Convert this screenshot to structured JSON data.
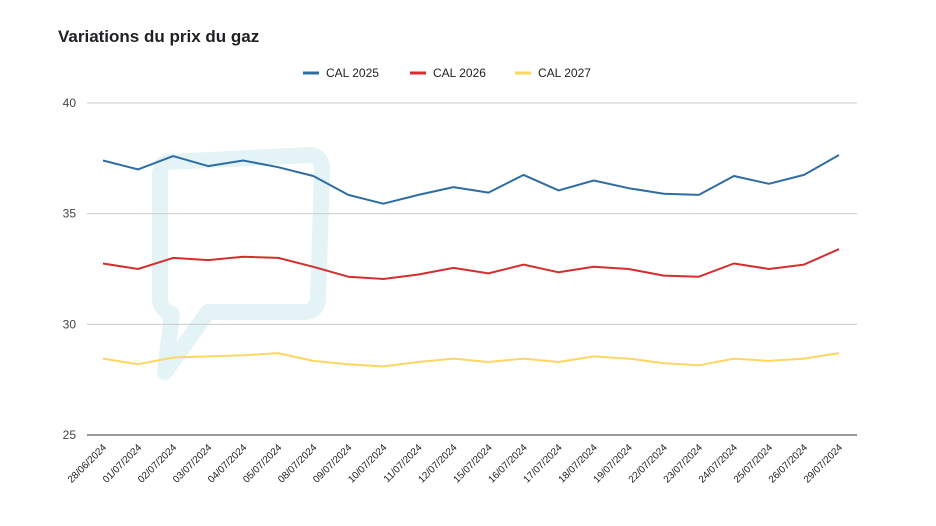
{
  "colors": {
    "background": "#ffffff",
    "grid": "#cccccc",
    "watermark": "#e8f5f7"
  },
  "chart_data": {
    "type": "line",
    "title": "Variations du prix du gaz",
    "xlabel": "",
    "ylabel": "",
    "ylim": [
      25,
      40
    ],
    "yticks": [
      25,
      30,
      35,
      40
    ],
    "grid": true,
    "legend_position": "top",
    "categories": [
      "28/06/2024",
      "01/07/2024",
      "02/07/2024",
      "03/07/2024",
      "04/07/2024",
      "05/07/2024",
      "08/07/2024",
      "09/07/2024",
      "10/07/2024",
      "11/07/2024",
      "12/07/2024",
      "15/07/2024",
      "16/07/2024",
      "17/07/2024",
      "18/07/2024",
      "19/07/2024",
      "22/07/2024",
      "23/07/2024",
      "24/07/2024",
      "25/07/2024",
      "26/07/2024",
      "29/07/2024"
    ],
    "series": [
      {
        "name": "CAL 2025",
        "color": "#2e6da4",
        "values": [
          37.4,
          37.0,
          37.6,
          37.15,
          37.4,
          37.1,
          36.7,
          35.85,
          35.45,
          35.85,
          36.2,
          35.95,
          36.75,
          36.05,
          36.5,
          36.15,
          35.9,
          35.85,
          36.7,
          36.35,
          36.75,
          37.65
        ]
      },
      {
        "name": "CAL 2026",
        "color": "#d32f2f",
        "values": [
          32.75,
          32.5,
          33.0,
          32.9,
          33.05,
          33.0,
          32.6,
          32.15,
          32.05,
          32.25,
          32.55,
          32.3,
          32.7,
          32.35,
          32.6,
          32.5,
          32.2,
          32.15,
          32.75,
          32.5,
          32.7,
          33.4
        ]
      },
      {
        "name": "CAL 2027",
        "color": "#fdd663",
        "values": [
          28.45,
          28.2,
          28.5,
          28.55,
          28.6,
          28.7,
          28.35,
          28.2,
          28.1,
          28.3,
          28.45,
          28.3,
          28.45,
          28.3,
          28.55,
          28.45,
          28.25,
          28.15,
          28.45,
          28.35,
          28.45,
          28.7
        ]
      }
    ]
  }
}
